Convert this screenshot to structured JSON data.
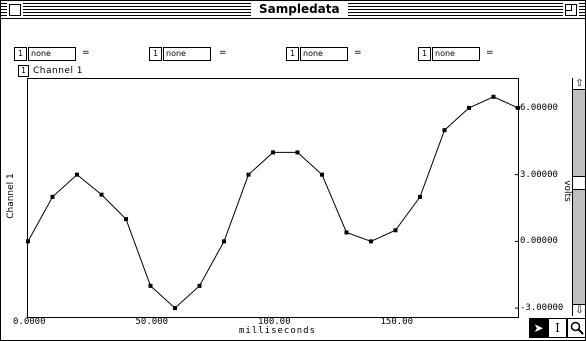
{
  "window": {
    "title": "Sampledata"
  },
  "params": [
    {
      "number": "1",
      "value": "none",
      "eq": "="
    },
    {
      "number": "1",
      "value": "none",
      "eq": "="
    },
    {
      "number": "1",
      "value": "none",
      "eq": "="
    },
    {
      "number": "1",
      "value": "none",
      "eq": "="
    }
  ],
  "channel": {
    "number": "1",
    "label": "Channel 1",
    "axis_label": "Channel 1"
  },
  "chart_data": {
    "type": "line",
    "xlabel": "milliseconds",
    "ylabel": "volts",
    "x_ticks": [
      "0.0000",
      "50.000",
      "100.00",
      "150.00"
    ],
    "x_tick_values": [
      0,
      50,
      100,
      150
    ],
    "y_ticks": [
      "6.00000",
      "3.00000",
      "0.00000",
      "-3.00000"
    ],
    "y_tick_values": [
      6,
      3,
      0,
      -3
    ],
    "xlim": [
      0,
      200
    ],
    "ylim": [
      -3.4,
      7.3
    ],
    "series": [
      {
        "x": [
          0,
          10,
          20,
          30,
          40,
          50,
          60,
          70,
          80,
          90,
          100,
          110,
          120,
          130,
          140,
          150,
          160,
          170,
          180,
          190,
          200
        ],
        "y": [
          0.0,
          2.0,
          3.0,
          2.1,
          1.0,
          -2.0,
          -3.0,
          -2.0,
          0.0,
          3.0,
          4.0,
          4.0,
          3.0,
          0.4,
          0.0,
          0.5,
          2.0,
          5.0,
          6.0,
          6.5,
          6.0
        ]
      }
    ],
    "grid": false
  },
  "tools": [
    {
      "name": "pointer",
      "glyph": "➤"
    },
    {
      "name": "ibeam",
      "glyph": "I"
    },
    {
      "name": "zoom",
      "glyph": "🔍"
    }
  ],
  "scroll": {
    "up": "⇧",
    "down": "⇩"
  }
}
